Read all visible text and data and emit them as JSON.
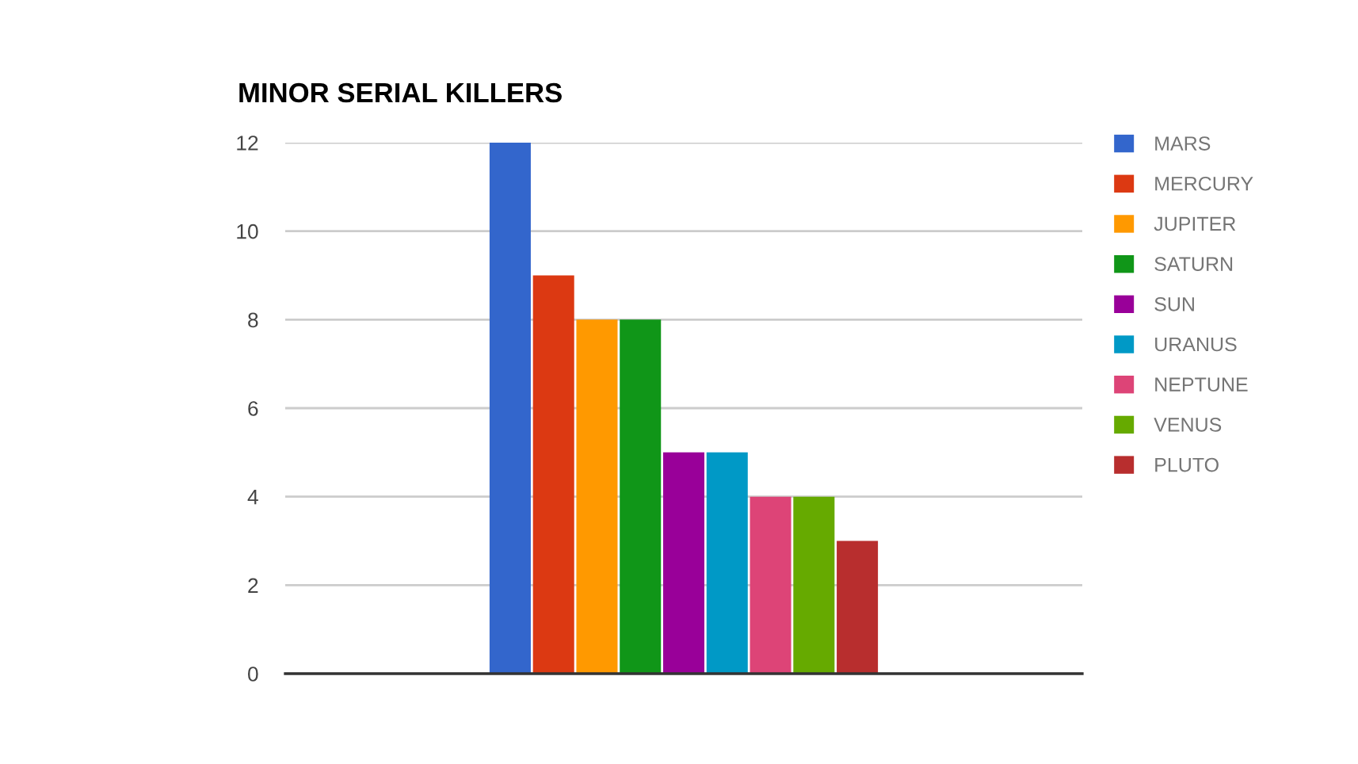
{
  "chart_data": {
    "type": "bar",
    "title": "MINOR SERIAL KILLERS",
    "categories": [
      null
    ],
    "series": [
      {
        "name": "MARS",
        "color": "#3366cc",
        "values": [
          12
        ]
      },
      {
        "name": "MERCURY",
        "color": "#dc3912",
        "values": [
          9
        ]
      },
      {
        "name": "JUPITER",
        "color": "#ff9900",
        "values": [
          8
        ]
      },
      {
        "name": "SATURN",
        "color": "#109618",
        "values": [
          8
        ]
      },
      {
        "name": "SUN",
        "color": "#990099",
        "values": [
          5
        ]
      },
      {
        "name": "URANUS",
        "color": "#0099c6",
        "values": [
          5
        ]
      },
      {
        "name": "NEPTUNE",
        "color": "#dd4477",
        "values": [
          4
        ]
      },
      {
        "name": "VENUS",
        "color": "#66aa00",
        "values": [
          4
        ]
      },
      {
        "name": "PLUTO",
        "color": "#b82e2e",
        "values": [
          3
        ]
      }
    ],
    "ylim": [
      0,
      12
    ],
    "yticks": [
      0,
      2,
      4,
      6,
      8,
      10,
      12
    ],
    "grid": "y",
    "legend": "right"
  }
}
